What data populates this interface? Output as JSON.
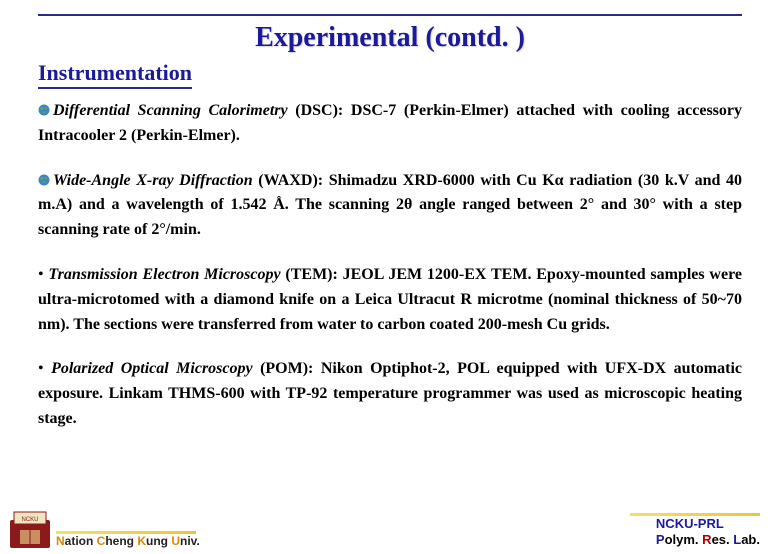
{
  "title": "Experimental (contd. )",
  "section": "Instrumentation",
  "items": [
    {
      "marker": "globe",
      "lead": "Differential Scanning Calorimetry (DSC)",
      "body": ":  DSC-7 (Perkin-Elmer) attached with cooling accessory Intracooler 2 (Perkin-Elmer)."
    },
    {
      "marker": "globe",
      "lead": "Wide-Angle X-ray Diffraction (WAXD)",
      "body": ":  Shimadzu XRD-6000 with Cu Kα radiation (30 k.V and 40 m.A) and a wavelength of 1.542 Å. The scanning 2θ angle ranged between 2° and 30° with a step scanning rate of 2°/min."
    },
    {
      "marker": "dot",
      "lead": "Transmission Electron Microscopy (TEM)",
      "body": ":  JEOL JEM 1200-EX TEM. Epoxy-mounted samples were ultra-microtomed with a diamond knife on a Leica Ultracut R microtme (nominal thickness of 50~70 nm). The sections were transferred from water to carbon coated 200-mesh Cu grids."
    },
    {
      "marker": "dot",
      "lead": "Polarized Optical Microscopy (POM)",
      "body": ":  Nikon Optiphot-2, POL equipped with UFX-DX automatic exposure. Linkam THMS-600 with TP-92 temperature programmer was used as microscopic heating stage."
    }
  ],
  "footer": {
    "left_parts": [
      "N",
      "ation ",
      "C",
      "heng ",
      "K",
      "ung ",
      "U",
      "niv."
    ],
    "right_line1": "NCKU-PRL",
    "right_line2_parts": [
      {
        "t": "P",
        "c": "fr-blue"
      },
      {
        "t": "olym. ",
        "c": "fr-black"
      },
      {
        "t": "R",
        "c": "fr-red"
      },
      {
        "t": "es. ",
        "c": "fr-black"
      },
      {
        "t": "L",
        "c": "fr-blue"
      },
      {
        "t": "ab.",
        "c": "fr-black"
      }
    ]
  },
  "colors": {
    "title": "#1a1a9a",
    "divider": "#2a2a8a",
    "globe_land": "#6aa84f",
    "globe_sea": "#3d85c6",
    "logo_bg": "#8b1a1a",
    "logo_top": "#f0e5c0"
  }
}
